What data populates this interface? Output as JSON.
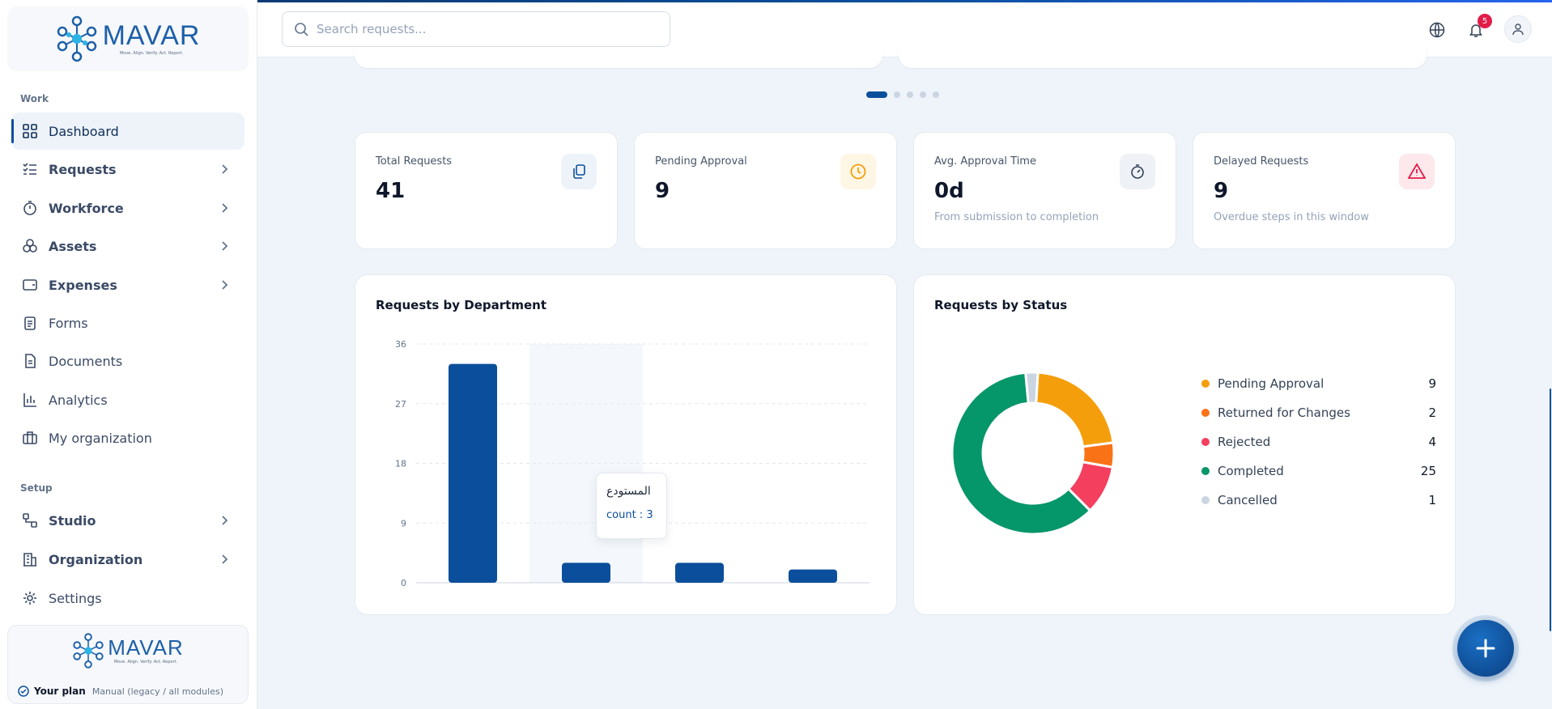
{
  "brand": {
    "name": "MAVAR",
    "tagline": "Move. Align. Verify. Act. Report."
  },
  "sidebar": {
    "sections": {
      "work": "Work",
      "setup": "Setup"
    },
    "items": [
      {
        "label": "Dashboard",
        "icon": "dashboard-icon"
      },
      {
        "label": "Requests",
        "icon": "checklist-icon"
      },
      {
        "label": "Workforce",
        "icon": "stopwatch-icon"
      },
      {
        "label": "Assets",
        "icon": "boxes-icon"
      },
      {
        "label": "Expenses",
        "icon": "wallet-icon"
      },
      {
        "label": "Forms",
        "icon": "clipboard-icon"
      },
      {
        "label": "Documents",
        "icon": "document-icon"
      },
      {
        "label": "Analytics",
        "icon": "bar-chart-icon"
      },
      {
        "label": "My organization",
        "icon": "briefcase-icon"
      },
      {
        "label": "Studio",
        "icon": "workflow-icon"
      },
      {
        "label": "Organization",
        "icon": "building-icon"
      },
      {
        "label": "Settings",
        "icon": "gear-icon"
      }
    ],
    "plan": {
      "label": "Your plan",
      "value": "Manual (legacy / all modules)"
    }
  },
  "topbar": {
    "search_placeholder": "Search requests...",
    "notifications_count": "5"
  },
  "kpis": [
    {
      "label": "Total Requests",
      "value": "41",
      "sub": ""
    },
    {
      "label": "Pending Approval",
      "value": "9",
      "sub": ""
    },
    {
      "label": "Avg. Approval Time",
      "value": "0d",
      "sub": "From submission to completion"
    },
    {
      "label": "Delayed Requests",
      "value": "9",
      "sub": "Overdue steps in this window"
    }
  ],
  "dept_chart": {
    "title": "Requests by Department",
    "tooltip": {
      "category": "المستودع",
      "text": "count : 3"
    }
  },
  "status_chart": {
    "title": "Requests by Status"
  },
  "colors": {
    "primary": "#0b4f9c",
    "pending": "#f59e0b",
    "returned": "#f97316",
    "rejected": "#f43f5e",
    "completed": "#059669",
    "cancelled": "#cbd5e1"
  },
  "chart_data": [
    {
      "type": "bar",
      "categories": [
        "",
        "المستودع",
        "",
        ""
      ],
      "values": [
        33,
        3,
        3,
        2
      ],
      "ylim": [
        0,
        36
      ],
      "yticks": [
        0,
        9,
        18,
        27,
        36
      ],
      "grid": true,
      "highlight_index": 1
    },
    {
      "type": "pie",
      "donut": true,
      "legend": "right",
      "labels": [
        "Pending Approval",
        "Returned for Changes",
        "Rejected",
        "Completed",
        "Cancelled"
      ],
      "values": [
        9,
        2,
        4,
        25,
        1
      ],
      "colors": [
        "#f59e0b",
        "#f97316",
        "#f43f5e",
        "#059669",
        "#cbd5e1"
      ]
    }
  ]
}
